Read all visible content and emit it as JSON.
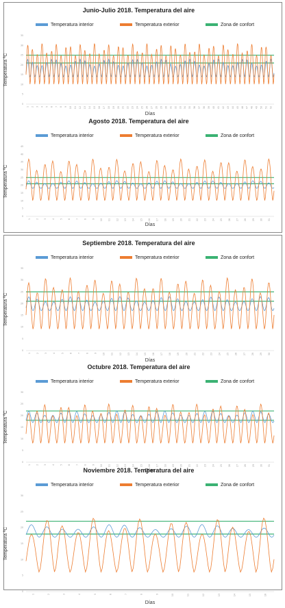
{
  "colors": {
    "interior": "#5b9bd5",
    "exterior": "#ed7d31",
    "confort": "#3bb273"
  },
  "chart_data": [
    {
      "type": "line",
      "title": "Junio-Julio 2018. Temperatura del aire",
      "xlabel": "Días",
      "ylabel": "Temperatura ºC",
      "ylim": [
        0,
        35
      ],
      "yticks": [
        0,
        5,
        10,
        15,
        20,
        25,
        30,
        35
      ],
      "days": 52,
      "series": [
        {
          "name": "Temperatura interior",
          "min": 14,
          "max": 23
        },
        {
          "name": "Temperatura exterior",
          "min": 10,
          "max": 31
        },
        {
          "name": "Zona de confort",
          "values": [
            21,
            25
          ]
        }
      ]
    },
    {
      "type": "line",
      "title": "Agosto 2018. Temperatura del aire",
      "xlabel": "Días",
      "ylabel": "Temperatura ºC",
      "ylim": [
        0,
        45
      ],
      "yticks": [
        0,
        5,
        10,
        15,
        20,
        25,
        30,
        35,
        40,
        45
      ],
      "days": 31,
      "series": [
        {
          "name": "Temperatura interior",
          "min": 18,
          "max": 23
        },
        {
          "name": "Temperatura exterior",
          "min": 10,
          "max": 37
        },
        {
          "name": "Zona de confort",
          "values": [
            21,
            25
          ]
        }
      ]
    },
    {
      "type": "line",
      "title": "Septiembre 2018. Temperatura del aire",
      "xlabel": "Días",
      "ylabel": "Temperatura ºC",
      "ylim": [
        0,
        35
      ],
      "yticks": [
        0,
        5,
        10,
        15,
        20,
        25,
        30,
        35
      ],
      "days": 30,
      "series": [
        {
          "name": "Temperatura interior",
          "min": 17,
          "max": 23
        },
        {
          "name": "Temperatura exterior",
          "min": 9,
          "max": 31
        },
        {
          "name": "Zona de confort",
          "values": [
            21,
            25
          ]
        }
      ]
    },
    {
      "type": "line",
      "title": "Octubre 2018. Temperatura del aire",
      "xlabel": "Días",
      "ylabel": "Temperatura ºC",
      "ylim": [
        0,
        30
      ],
      "yticks": [
        0,
        5,
        10,
        15,
        20,
        25,
        30
      ],
      "days": 31,
      "series": [
        {
          "name": "Temperatura interior",
          "min": 17,
          "max": 22
        },
        {
          "name": "Temperatura exterior",
          "min": 8,
          "max": 25
        },
        {
          "name": "Zona de confort",
          "values": [
            18,
            22
          ]
        }
      ]
    },
    {
      "type": "line",
      "title": "Noviembre 2018. Temperatura del aire",
      "xlabel": "Días",
      "ylabel": "Temperatura ºC",
      "ylim": [
        0,
        30
      ],
      "yticks": [
        0,
        5,
        10,
        15,
        20,
        25,
        30
      ],
      "days": 16,
      "series": [
        {
          "name": "Temperatura interior",
          "min": 17,
          "max": 21
        },
        {
          "name": "Temperatura exterior",
          "min": 6,
          "max": 23
        },
        {
          "name": "Zona de confort",
          "values": [
            18,
            22
          ]
        }
      ]
    }
  ]
}
